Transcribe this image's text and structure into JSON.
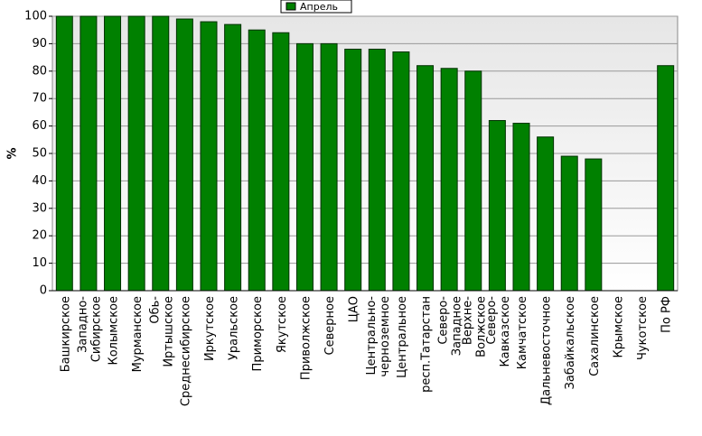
{
  "chart_data": {
    "type": "bar",
    "y_label": "%",
    "categories": [
      "Башкирское",
      "Западно-\nСибирское",
      "Колымское",
      "Мурманское",
      "Обь-\nИртышское",
      "Среднесибирское",
      "Иркутское",
      "Уральское",
      "Приморское",
      "Якутское",
      "Приволжское",
      "Северное",
      "ЦАО",
      "Центрально-\nчерноземное",
      "Центральное",
      "респ.Татарстан",
      "Северо-\nЗападное",
      "Верхне-\nВолжское",
      "Северо-\nКавказское",
      "Камчатское",
      "Дальневосточное",
      "Забайкальское",
      "Сахалинское",
      "Крымское",
      "Чукотское",
      "По РФ"
    ],
    "series": [
      {
        "name": "Апрель",
        "color": "#008000",
        "values": [
          100,
          100,
          100,
          100,
          100,
          99,
          98,
          97,
          95,
          94,
          90,
          90,
          88,
          88,
          87,
          82,
          81,
          80,
          62,
          61,
          56,
          49,
          48,
          0,
          0,
          82
        ]
      }
    ],
    "ylim": [
      0,
      100
    ],
    "yticks": [
      0,
      10,
      20,
      30,
      40,
      50,
      60,
      70,
      80,
      90,
      100
    ],
    "grid": true,
    "legend": "top"
  }
}
